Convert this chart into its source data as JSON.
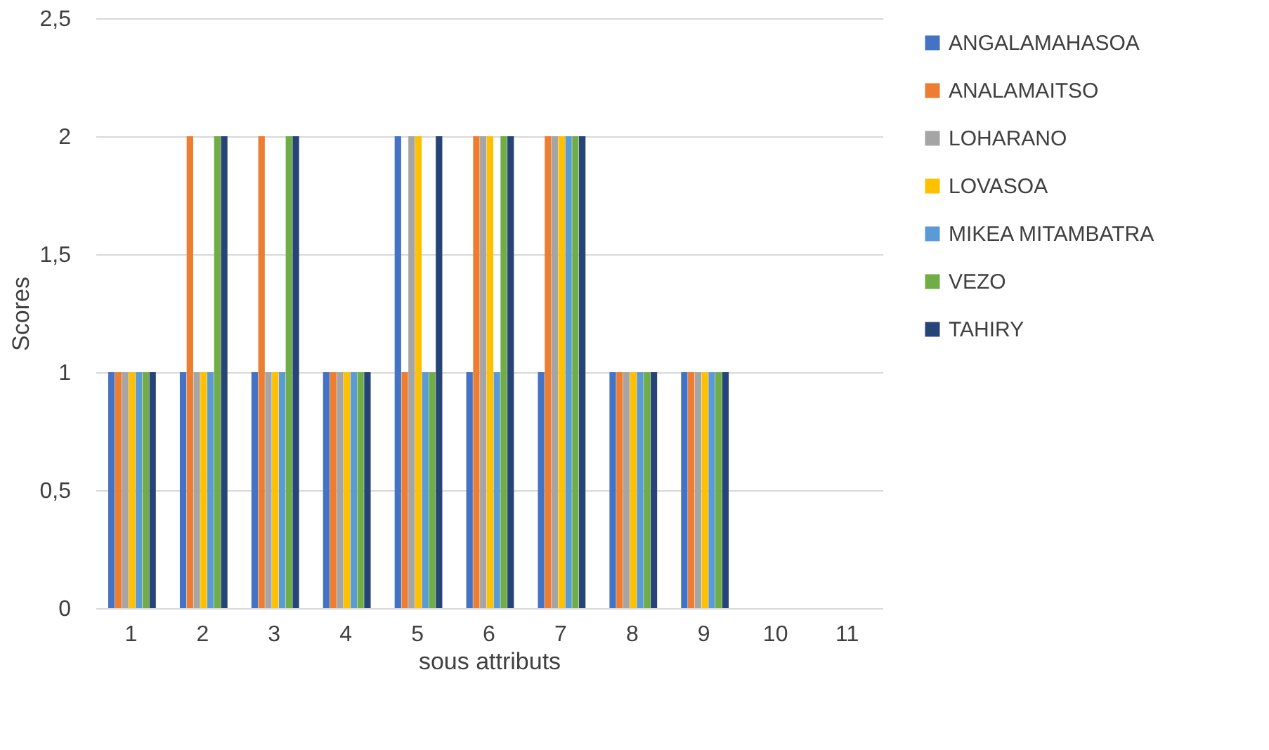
{
  "chart_data": {
    "type": "bar",
    "xlabel": "sous attributs",
    "ylabel": "Scores",
    "categories": [
      "1",
      "2",
      "3",
      "4",
      "5",
      "6",
      "7",
      "8",
      "9",
      "10",
      "11"
    ],
    "series": [
      {
        "name": "ANGALAMAHASOA",
        "color": "#4472c4",
        "values": [
          1,
          1,
          1,
          1,
          2,
          1,
          1,
          1,
          1,
          null,
          null
        ]
      },
      {
        "name": "ANALAMAITSO",
        "color": "#ed7d31",
        "values": [
          1,
          2,
          2,
          1,
          1,
          2,
          2,
          1,
          1,
          null,
          null
        ]
      },
      {
        "name": "LOHARANO",
        "color": "#a5a5a5",
        "values": [
          1,
          1,
          1,
          1,
          2,
          2,
          2,
          1,
          1,
          null,
          null
        ]
      },
      {
        "name": "LOVASOA",
        "color": "#ffc000",
        "values": [
          1,
          1,
          1,
          1,
          2,
          2,
          2,
          1,
          1,
          null,
          null
        ]
      },
      {
        "name": "MIKEA MITAMBATRA",
        "color": "#5b9bd5",
        "values": [
          1,
          1,
          1,
          1,
          1,
          1,
          2,
          1,
          1,
          null,
          null
        ]
      },
      {
        "name": "VEZO",
        "color": "#70ad47",
        "values": [
          1,
          2,
          2,
          1,
          1,
          2,
          2,
          1,
          1,
          null,
          null
        ]
      },
      {
        "name": "TAHIRY",
        "color": "#264478",
        "values": [
          1,
          2,
          2,
          1,
          2,
          2,
          2,
          1,
          1,
          null,
          null
        ]
      }
    ],
    "ylim": [
      0,
      2.5
    ],
    "yticks": [
      0,
      {
        "value": 0.5,
        "label": "0,5"
      },
      1,
      {
        "value": 1.5,
        "label": "1,5"
      },
      2,
      {
        "value": 2.5,
        "label": "2,5"
      }
    ],
    "grid": "y",
    "legend": "right"
  }
}
